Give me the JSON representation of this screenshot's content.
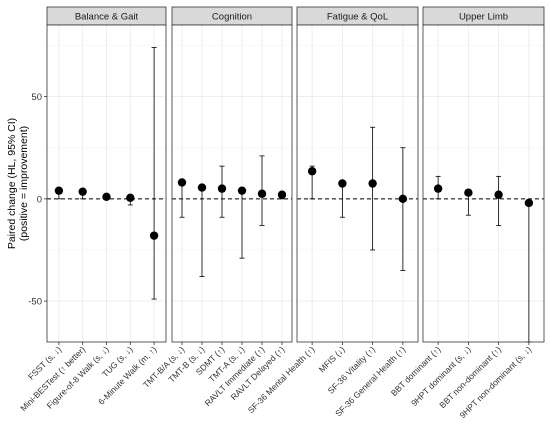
{
  "chart_data": {
    "type": "scatter",
    "subtype": "point-range with 95% CI, faceted",
    "ylabel": "Paired change (HL, 95% CI)\n(positive = improvement)",
    "xlabel": "",
    "ylim": [
      -70,
      85
    ],
    "yticks": [
      -50,
      0,
      50
    ],
    "grid": true,
    "reference_line": {
      "y": 0,
      "style": "dashed"
    },
    "panels": [
      {
        "name": "Balance & Gait",
        "points": [
          {
            "label": "FSST (s, ↓)",
            "y": 4,
            "lo": 0,
            "hi": 4.5
          },
          {
            "label": "Mini-BESTest (↑ better)",
            "y": 3.5,
            "lo": 0,
            "hi": 4
          },
          {
            "label": "Figure-of-8 Walk (s, ↓)",
            "y": 1,
            "lo": 0,
            "hi": 1.5
          },
          {
            "label": "TUG (s, ↓)",
            "y": 0.5,
            "lo": -3,
            "hi": 1
          },
          {
            "label": "6-Minute Walk (m, ↑)",
            "y": -18,
            "lo": -49,
            "hi": 74
          }
        ]
      },
      {
        "name": "Cognition",
        "points": [
          {
            "label": "TMT-B/A (s, ↓)",
            "y": 8,
            "lo": -9,
            "hi": 8.5
          },
          {
            "label": "TMT-B (s, ↓)",
            "y": 5.5,
            "lo": -38,
            "hi": 6
          },
          {
            "label": "SDMT (↑)",
            "y": 5,
            "lo": -9,
            "hi": 16
          },
          {
            "label": "TMT-A (s, ↓)",
            "y": 4,
            "lo": -29,
            "hi": 4.5
          },
          {
            "label": "RAVLT Immediate (↑)",
            "y": 2.5,
            "lo": -13,
            "hi": 21
          },
          {
            "label": "RAVLT Delayed (↑)",
            "y": 2,
            "lo": 0,
            "hi": 2.5
          }
        ]
      },
      {
        "name": "Fatigue & QoL",
        "points": [
          {
            "label": "SF-36 Mental Health (↑)",
            "y": 13.5,
            "lo": 0,
            "hi": 16
          },
          {
            "label": "MFIS (↓)",
            "y": 7.5,
            "lo": -9,
            "hi": 8
          },
          {
            "label": "SF-36 Vitality (↑)",
            "y": 7.5,
            "lo": -25,
            "hi": 35
          },
          {
            "label": "SF-36 General Health (↑)",
            "y": 0,
            "lo": -35,
            "hi": 25
          }
        ]
      },
      {
        "name": "Upper Limb",
        "points": [
          {
            "label": "BBT dominant (↑)",
            "y": 5,
            "lo": 0,
            "hi": 11
          },
          {
            "label": "9HPT dominant (s, ↓)",
            "y": 3,
            "lo": -8,
            "hi": 3.5
          },
          {
            "label": "BBT non-dominant (↑)",
            "y": 2,
            "lo": -13,
            "hi": 11
          },
          {
            "label": "9HPT non-dominant (s, ↓)",
            "y": -2,
            "lo": -82,
            "hi": -1.5
          }
        ]
      }
    ],
    "colors": {
      "strip_fill": "#d9d9d9",
      "panel_border": "#333333",
      "gridline": "#ebebeb",
      "point": "#000000",
      "text": "#333333"
    }
  }
}
